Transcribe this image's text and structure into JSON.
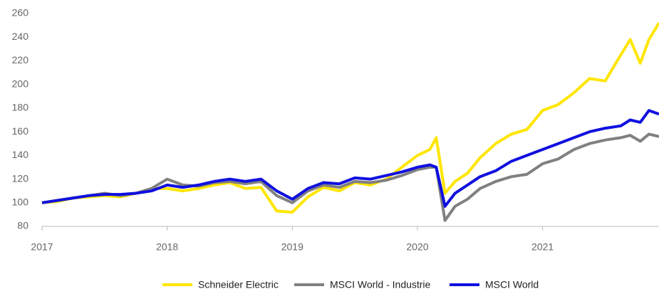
{
  "chart_data": {
    "type": "line",
    "x": [
      2017.0,
      2017.125,
      2017.25,
      2017.375,
      2017.5,
      2017.625,
      2017.75,
      2017.875,
      2018.0,
      2018.125,
      2018.25,
      2018.375,
      2018.5,
      2018.625,
      2018.75,
      2018.875,
      2019.0,
      2019.125,
      2019.25,
      2019.375,
      2019.5,
      2019.625,
      2019.75,
      2019.875,
      2020.0,
      2020.1,
      2020.15,
      2020.22,
      2020.3,
      2020.4,
      2020.5,
      2020.625,
      2020.75,
      2020.875,
      2021.0,
      2021.125,
      2021.25,
      2021.375,
      2021.5,
      2021.625,
      2021.7,
      2021.78,
      2021.85,
      2021.93
    ],
    "series": [
      {
        "name": "Schneider Electric",
        "color": "#ffe600",
        "values": [
          100,
          101,
          104,
          105,
          106,
          105,
          108,
          112,
          112,
          110,
          112,
          115,
          117,
          112,
          113,
          93,
          92,
          105,
          113,
          110,
          117,
          115,
          120,
          130,
          140,
          145,
          155,
          108,
          118,
          125,
          138,
          150,
          158,
          162,
          178,
          183,
          193,
          205,
          203,
          225,
          238,
          218,
          238,
          252
        ]
      },
      {
        "name": "MSCI World - Industrie",
        "color": "#808080",
        "values": [
          100,
          102,
          104,
          106,
          108,
          106,
          108,
          112,
          120,
          115,
          114,
          117,
          118,
          116,
          118,
          106,
          100,
          110,
          115,
          113,
          118,
          117,
          119,
          123,
          128,
          130,
          130,
          85,
          97,
          103,
          112,
          118,
          122,
          124,
          133,
          137,
          145,
          150,
          153,
          155,
          157,
          152,
          158,
          156
        ]
      },
      {
        "name": "MSCI World",
        "color": "#1010e0",
        "values": [
          100,
          102,
          104,
          106,
          107,
          107,
          108,
          110,
          115,
          113,
          115,
          118,
          120,
          118,
          120,
          110,
          103,
          112,
          117,
          116,
          121,
          120,
          123,
          126,
          130,
          132,
          130,
          97,
          108,
          115,
          122,
          127,
          135,
          140,
          145,
          150,
          155,
          160,
          163,
          165,
          170,
          168,
          178,
          175
        ]
      }
    ],
    "xlim": [
      2017,
      2021.93
    ],
    "xticks": [
      2017,
      2018,
      2019,
      2020,
      2021
    ],
    "ylim": [
      80,
      260
    ],
    "yticks": [
      80,
      100,
      120,
      140,
      160,
      180,
      200,
      220,
      240,
      260
    ],
    "grid": false,
    "legend": "bottom"
  }
}
